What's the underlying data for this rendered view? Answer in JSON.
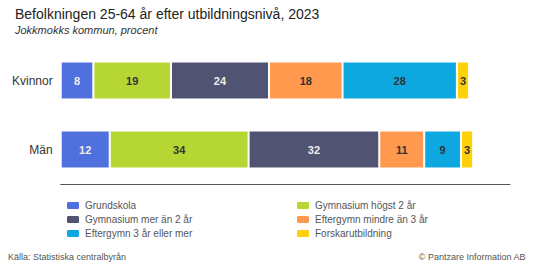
{
  "chart_data": {
    "type": "bar",
    "title": "Befolkningen 25-64 år efter utbildningsnivå, 2023",
    "subtitle": "Jokkmokks kommun, procent",
    "annotations": [
      "Källa: Statistiska centralbyrån",
      "© Pantzare Information AB"
    ],
    "orientation": "horizontal",
    "stacked": true,
    "data_labels": true,
    "tick_labels": "y",
    "legend": "bottom",
    "grid": false,
    "categories": [
      "Kvinnor",
      "Män"
    ],
    "series": [
      {
        "name": "Grundskola",
        "values": [
          8,
          12
        ]
      },
      {
        "name": "Gymnasium högst 2 år",
        "values": [
          19,
          34
        ]
      },
      {
        "name": "Gymnasium mer än 2 år",
        "values": [
          24,
          32
        ]
      },
      {
        "name": "Eftergymn mindre än 3 år",
        "values": [
          18,
          11
        ]
      },
      {
        "name": "Eftergymn 3 år eller mer",
        "values": [
          28,
          9
        ]
      },
      {
        "name": "Forskarutbildning",
        "values": [
          3,
          3
        ]
      }
    ],
    "xlim": [
      0,
      110
    ]
  }
}
